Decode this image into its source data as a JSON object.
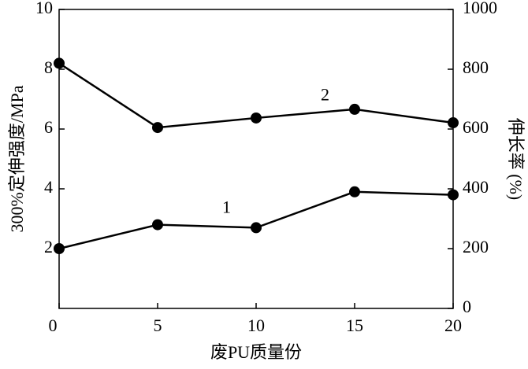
{
  "chart_data": {
    "type": "line",
    "x_label": "废PU质量份",
    "y_label": "300%定伸强度/MPa",
    "y2_label": "伸长率 (%)",
    "x": [
      0,
      5,
      10,
      15,
      20
    ],
    "series": [
      {
        "name": "1",
        "color": "#000000",
        "values": [
          2.0,
          2.8,
          2.7,
          3.9,
          3.8
        ]
      },
      {
        "name": "2",
        "color": "#000000",
        "axis": "y2",
        "values": [
          820,
          605,
          637,
          666,
          621
        ]
      }
    ],
    "xlim": [
      0,
      20
    ],
    "xticks": [
      0,
      5,
      10,
      15,
      20
    ],
    "ylim": [
      0,
      10
    ],
    "yticks": [
      2,
      4,
      6,
      8,
      10
    ],
    "y2lim": [
      0,
      1000
    ],
    "y2ticks": [
      0,
      200,
      400,
      600,
      800,
      1000
    ]
  }
}
